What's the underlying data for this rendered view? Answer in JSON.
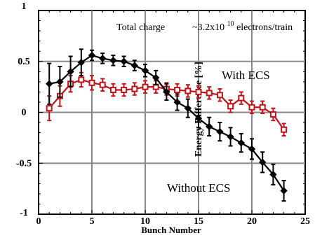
{
  "chart_data": {
    "type": "line",
    "title": "",
    "xlabel": "Bunch  Number",
    "ylabel": "Energy Difference  [%]",
    "xlim": [
      0,
      25
    ],
    "ylim": [
      -1,
      1
    ],
    "x_ticks": [
      "0",
      "5",
      "10",
      "15",
      "20",
      "25"
    ],
    "y_ticks": [
      "1",
      "0.5",
      "0",
      "-0.5",
      "-1"
    ],
    "grid": true,
    "annotations": {
      "total_charge_label": "Total charge",
      "charge_value_prefix": "~3.2x10",
      "charge_value_exponent": "10",
      "charge_value_suffix": " electrons/train"
    },
    "series": [
      {
        "name": "With ECS",
        "color": "#c0141a",
        "marker": "open-square",
        "x": [
          1,
          2,
          3,
          4,
          5,
          6,
          7,
          8,
          9,
          10,
          11,
          12,
          13,
          14,
          15,
          16,
          17,
          18,
          19,
          20,
          21,
          22,
          23
        ],
        "y": [
          0.04,
          0.16,
          0.28,
          0.32,
          0.29,
          0.27,
          0.22,
          0.22,
          0.23,
          0.25,
          0.25,
          0.23,
          0.22,
          0.21,
          0.2,
          0.19,
          0.17,
          0.06,
          0.14,
          0.05,
          0.05,
          -0.02,
          -0.17
        ],
        "err": [
          0.12,
          0.1,
          0.08,
          0.07,
          0.07,
          0.06,
          0.06,
          0.06,
          0.06,
          0.06,
          0.06,
          0.06,
          0.06,
          0.06,
          0.06,
          0.06,
          0.06,
          0.06,
          0.06,
          0.06,
          0.06,
          0.06,
          0.06
        ]
      },
      {
        "name": "Without ECS",
        "color": "#000000",
        "marker": "filled-diamond",
        "x": [
          1,
          2,
          3,
          4,
          5,
          6,
          7,
          8,
          9,
          10,
          11,
          12,
          13,
          14,
          15,
          16,
          17,
          18,
          19,
          20,
          21,
          22,
          23
        ],
        "y": [
          0.28,
          0.3,
          0.4,
          0.49,
          0.56,
          0.53,
          0.51,
          0.5,
          0.46,
          0.41,
          0.34,
          0.2,
          0.1,
          0.04,
          -0.06,
          -0.14,
          -0.19,
          -0.24,
          -0.3,
          -0.36,
          -0.49,
          -0.61,
          -0.77
        ],
        "err": [
          0.2,
          0.15,
          0.15,
          0.13,
          0.05,
          0.05,
          0.05,
          0.05,
          0.05,
          0.06,
          0.07,
          0.08,
          0.08,
          0.09,
          0.09,
          0.09,
          0.09,
          0.09,
          0.09,
          0.1,
          0.1,
          0.1,
          0.1
        ]
      }
    ]
  }
}
